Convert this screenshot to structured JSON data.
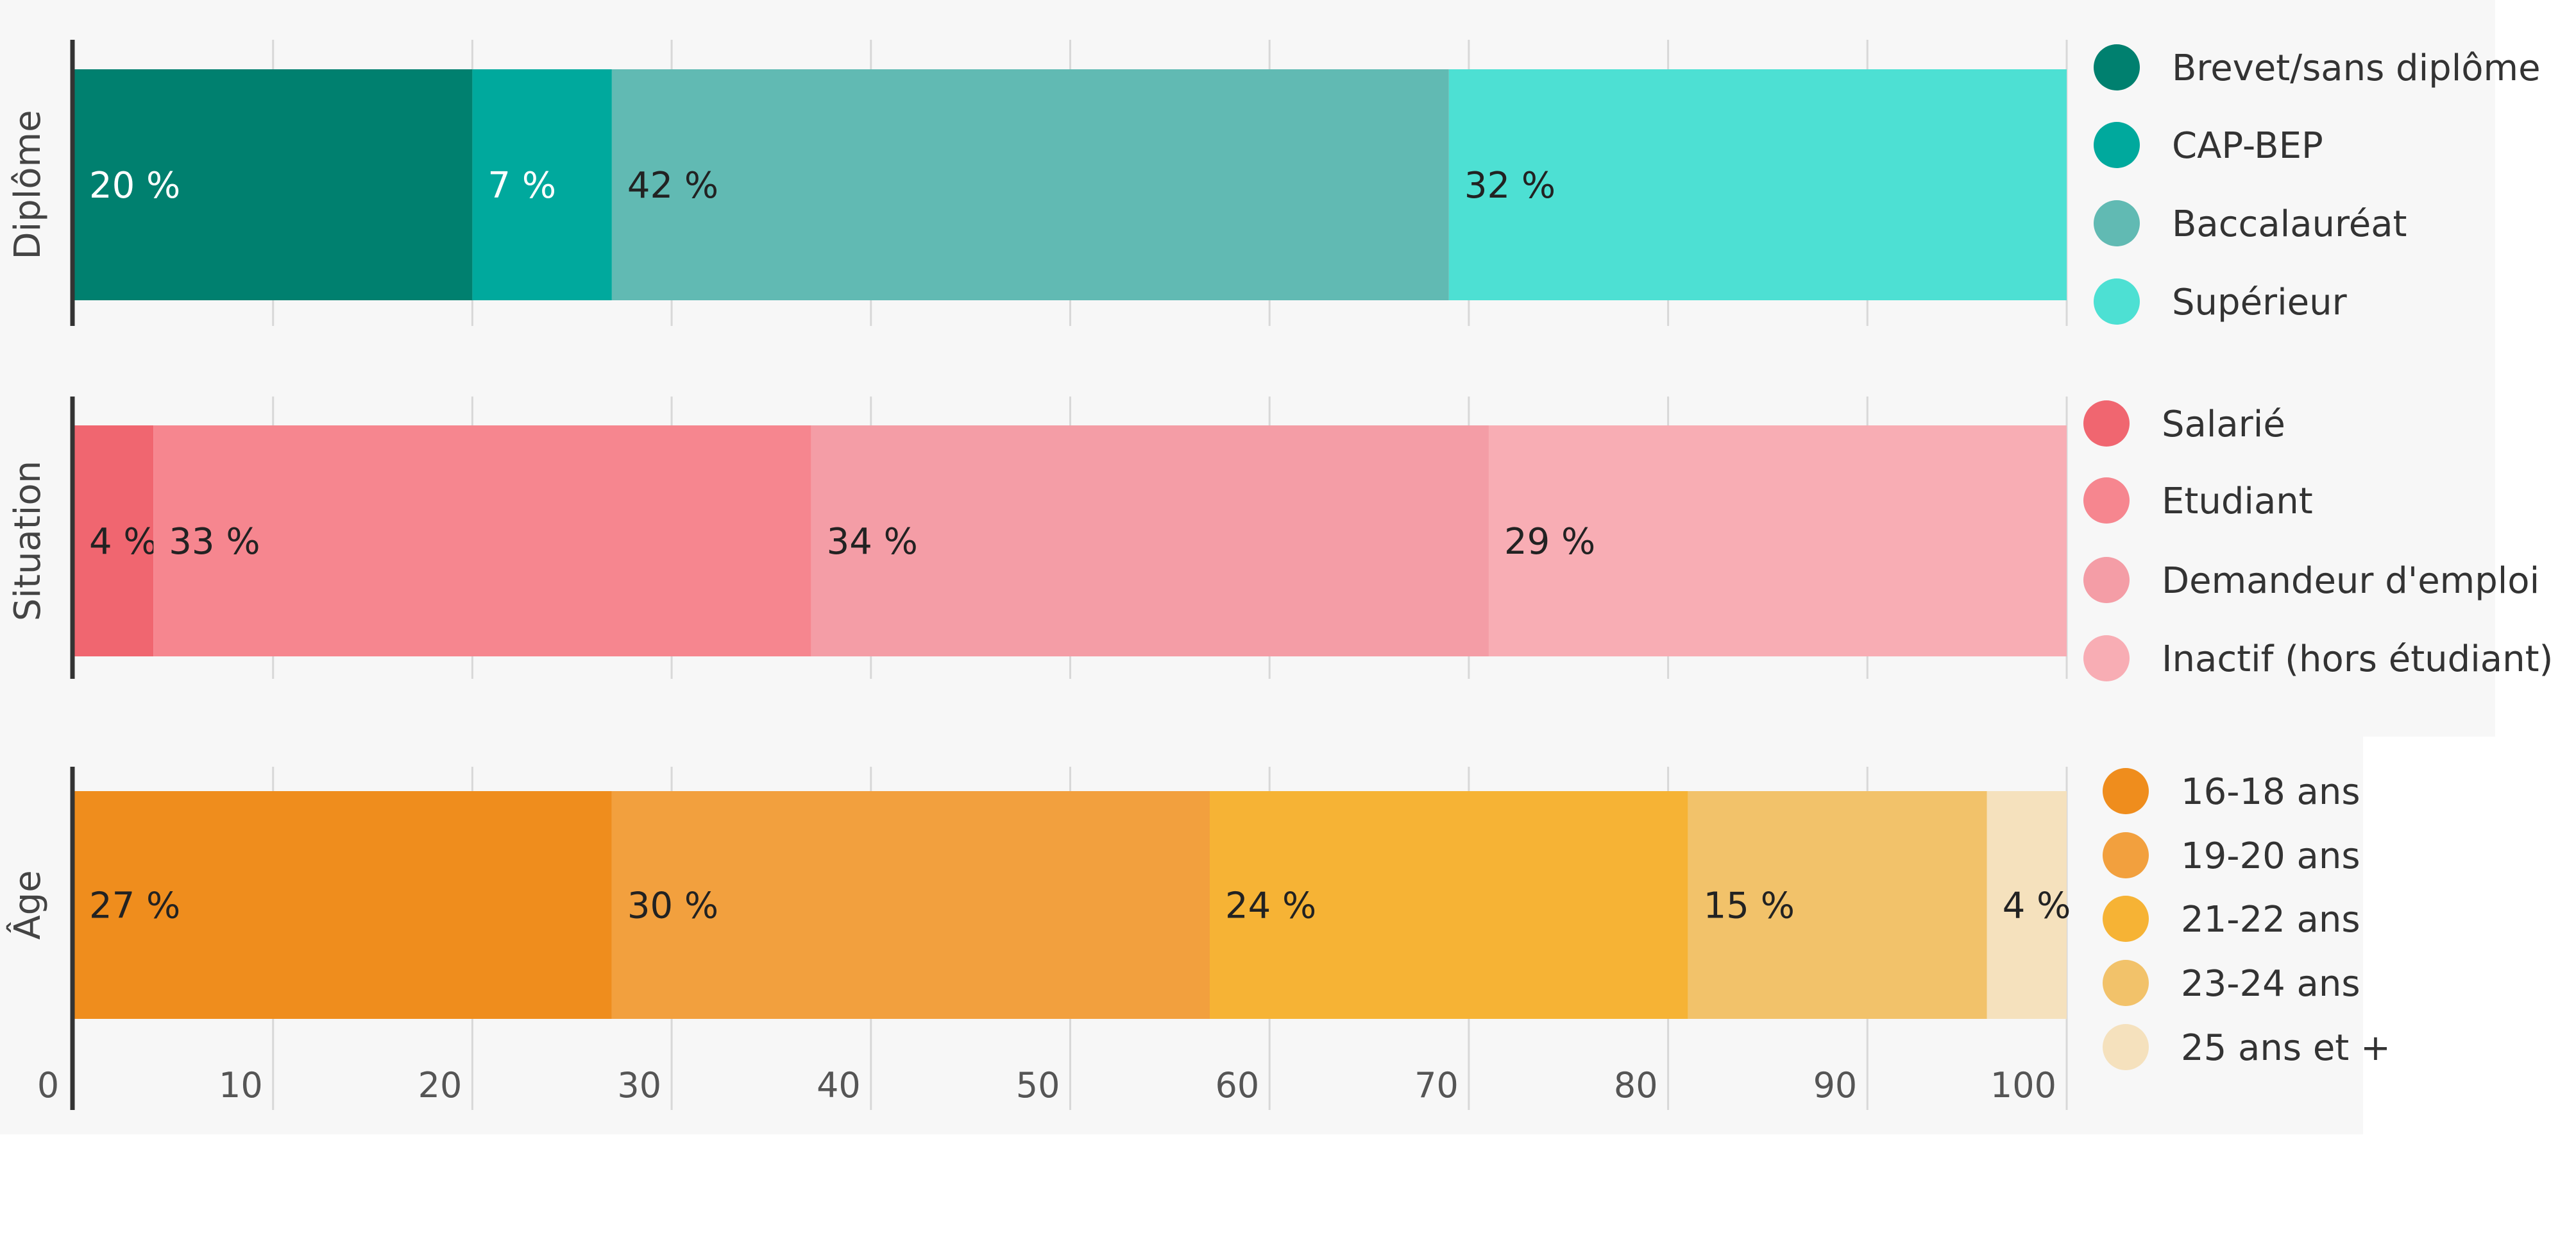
{
  "chart_data": {
    "type": "bar",
    "orientation": "horizontal",
    "stacked": true,
    "xlim": [
      0,
      100
    ],
    "xticks": [
      0,
      10,
      20,
      30,
      40,
      50,
      60,
      70,
      80,
      90,
      100
    ],
    "grid": true,
    "legend_position": "right",
    "groups": [
      {
        "category": "Diplôme",
        "series": [
          {
            "name": "Brevet/sans diplôme",
            "value": 20,
            "label": "20 %",
            "color": "#00806f"
          },
          {
            "name": "CAP-BEP",
            "value": 7,
            "label": "7 %",
            "color": "#00a99d"
          },
          {
            "name": "Baccalauréat",
            "value": 42,
            "label": "42 %",
            "color": "#61bab3"
          },
          {
            "name": "Supérieur",
            "value": 32,
            "label": "32 %",
            "color": "#4de0d3"
          }
        ]
      },
      {
        "category": "Situation",
        "series": [
          {
            "name": "Salarié",
            "value": 4,
            "label": "4 %",
            "color": "#f06670"
          },
          {
            "name": "Etudiant",
            "value": 33,
            "label": "33 %",
            "color": "#f6868f"
          },
          {
            "name": "Demandeur d'emploi",
            "value": 34,
            "label": "34 %",
            "color": "#f49da6"
          },
          {
            "name": "Inactif (hors étudiant)",
            "value": 29,
            "label": "29 %",
            "color": "#f8adb4"
          }
        ]
      },
      {
        "category": "Âge",
        "series": [
          {
            "name": "16-18 ans",
            "value": 27,
            "label": "27 %",
            "color": "#ef8d1d"
          },
          {
            "name": "19-20 ans",
            "value": 30,
            "label": "30 %",
            "color": "#f2a03e"
          },
          {
            "name": "21-22 ans",
            "value": 24,
            "label": "24 %",
            "color": "#f6b335"
          },
          {
            "name": "23-24 ans",
            "value": 15,
            "label": "15 %",
            "color": "#f2c26a"
          },
          {
            "name": "25 ans et +",
            "value": 4,
            "label": "4 %",
            "color": "#f5e1bd"
          }
        ]
      }
    ]
  }
}
